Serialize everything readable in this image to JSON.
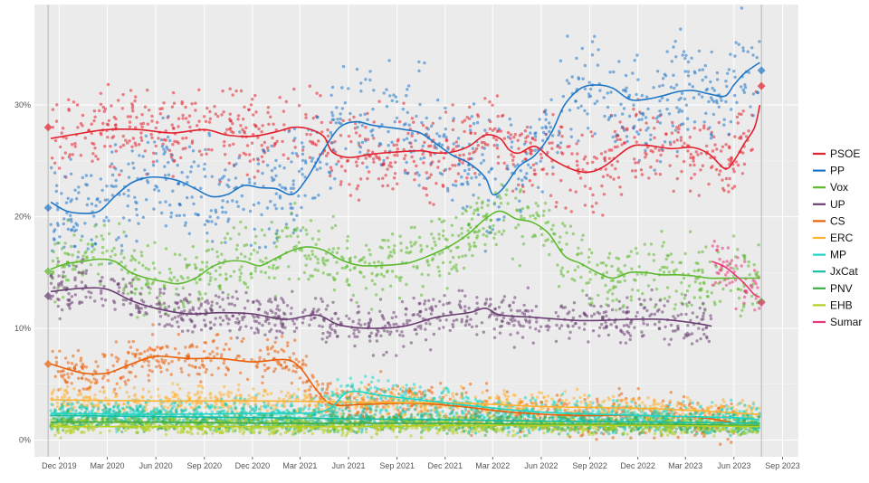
{
  "chart_data": {
    "type": "scatter",
    "title": "",
    "xlabel": "",
    "ylabel": "",
    "x_range": [
      "2019-10-15",
      "2023-10-01"
    ],
    "ylim": [
      -1.5,
      39
    ],
    "y_ticks": [
      {
        "value": 0,
        "label": "0%"
      },
      {
        "value": 10,
        "label": "10%"
      },
      {
        "value": 20,
        "label": "20%"
      },
      {
        "value": 30,
        "label": "30%"
      }
    ],
    "x_ticks": [
      {
        "date": "2019-12-01",
        "label": "Dec 2019"
      },
      {
        "date": "2020-03-01",
        "label": "Mar 2020"
      },
      {
        "date": "2020-06-01",
        "label": "Jun 2020"
      },
      {
        "date": "2020-09-01",
        "label": "Sep 2020"
      },
      {
        "date": "2020-12-01",
        "label": "Dec 2020"
      },
      {
        "date": "2021-03-01",
        "label": "Mar 2021"
      },
      {
        "date": "2021-06-01",
        "label": "Jun 2021"
      },
      {
        "date": "2021-09-01",
        "label": "Sep 2021"
      },
      {
        "date": "2021-12-01",
        "label": "Dec 2021"
      },
      {
        "date": "2022-03-01",
        "label": "Mar 2022"
      },
      {
        "date": "2022-06-01",
        "label": "Jun 2022"
      },
      {
        "date": "2022-09-01",
        "label": "Sep 2022"
      },
      {
        "date": "2022-12-01",
        "label": "Dec 2022"
      },
      {
        "date": "2023-03-01",
        "label": "Mar 2023"
      },
      {
        "date": "2023-06-01",
        "label": "Jun 2023"
      },
      {
        "date": "2023-09-01",
        "label": "Sep 2023"
      }
    ],
    "election_markers": [
      "2019-11-10",
      "2023-07-23"
    ],
    "grid": true,
    "legend_position": "right",
    "series": [
      {
        "name": "PSOE",
        "color": "#e3202d",
        "scatter": 1.8,
        "election_results": [
          {
            "date": "2019-11-10",
            "value": 28.0
          },
          {
            "date": "2023-07-23",
            "value": 31.7
          }
        ],
        "points": [
          [
            "2019-11-15",
            27.0
          ],
          [
            "2020-01-15",
            27.5
          ],
          [
            "2020-03-01",
            27.8
          ],
          [
            "2020-05-01",
            27.8
          ],
          [
            "2020-07-01",
            27.5
          ],
          [
            "2020-09-01",
            27.8
          ],
          [
            "2020-10-15",
            27.3
          ],
          [
            "2020-12-01",
            27.2
          ],
          [
            "2021-01-15",
            27.6
          ],
          [
            "2021-02-15",
            28.0
          ],
          [
            "2021-03-15",
            27.9
          ],
          [
            "2021-04-15",
            27.2
          ],
          [
            "2021-05-01",
            25.8
          ],
          [
            "2021-06-01",
            25.3
          ],
          [
            "2021-07-15",
            25.6
          ],
          [
            "2021-09-01",
            25.8
          ],
          [
            "2021-10-15",
            25.9
          ],
          [
            "2021-11-15",
            25.7
          ],
          [
            "2021-12-15",
            25.8
          ],
          [
            "2022-01-15",
            26.3
          ],
          [
            "2022-02-15",
            27.3
          ],
          [
            "2022-03-15",
            27.0
          ],
          [
            "2022-04-01",
            26.0
          ],
          [
            "2022-04-20",
            25.7
          ],
          [
            "2022-05-20",
            26.3
          ],
          [
            "2022-06-20",
            25.2
          ],
          [
            "2022-08-01",
            24.2
          ],
          [
            "2022-09-01",
            24.0
          ],
          [
            "2022-10-01",
            24.6
          ],
          [
            "2022-11-15",
            26.2
          ],
          [
            "2022-12-15",
            26.4
          ],
          [
            "2023-02-01",
            26.1
          ],
          [
            "2023-03-15",
            26.2
          ],
          [
            "2023-04-15",
            25.6
          ],
          [
            "2023-05-15",
            24.3
          ],
          [
            "2023-06-01",
            25.0
          ],
          [
            "2023-06-20",
            26.5
          ],
          [
            "2023-07-10",
            28.0
          ],
          [
            "2023-07-20",
            30.0
          ]
        ]
      },
      {
        "name": "PP",
        "color": "#1f77c8",
        "scatter": 2.5,
        "election_results": [
          {
            "date": "2019-11-10",
            "value": 20.8
          },
          {
            "date": "2023-07-23",
            "value": 33.1
          }
        ],
        "points": [
          [
            "2019-11-15",
            21.3
          ],
          [
            "2019-12-15",
            20.5
          ],
          [
            "2020-01-15",
            20.3
          ],
          [
            "2020-02-15",
            20.5
          ],
          [
            "2020-03-15",
            21.8
          ],
          [
            "2020-04-15",
            23.0
          ],
          [
            "2020-05-15",
            23.5
          ],
          [
            "2020-06-15",
            23.5
          ],
          [
            "2020-07-15",
            23.2
          ],
          [
            "2020-08-15",
            22.5
          ],
          [
            "2020-09-15",
            21.8
          ],
          [
            "2020-10-15",
            22.0
          ],
          [
            "2020-11-15",
            22.8
          ],
          [
            "2020-12-15",
            22.6
          ],
          [
            "2021-01-15",
            22.5
          ],
          [
            "2021-02-15",
            22.0
          ],
          [
            "2021-03-15",
            23.5
          ],
          [
            "2021-04-15",
            26.0
          ],
          [
            "2021-05-15",
            28.0
          ],
          [
            "2021-06-15",
            28.5
          ],
          [
            "2021-07-15",
            28.2
          ],
          [
            "2021-08-15",
            28.0
          ],
          [
            "2021-09-15",
            27.8
          ],
          [
            "2021-10-15",
            27.5
          ],
          [
            "2021-11-15",
            26.5
          ],
          [
            "2021-12-15",
            25.5
          ],
          [
            "2022-01-15",
            24.8
          ],
          [
            "2022-02-15",
            23.5
          ],
          [
            "2022-03-01",
            22.0
          ],
          [
            "2022-03-20",
            22.5
          ],
          [
            "2022-04-20",
            24.5
          ],
          [
            "2022-05-20",
            25.5
          ],
          [
            "2022-06-20",
            27.5
          ],
          [
            "2022-07-15",
            30.0
          ],
          [
            "2022-08-15",
            31.5
          ],
          [
            "2022-09-15",
            31.8
          ],
          [
            "2022-10-15",
            31.5
          ],
          [
            "2022-11-15",
            30.5
          ],
          [
            "2022-12-15",
            30.5
          ],
          [
            "2023-01-15",
            30.8
          ],
          [
            "2023-02-15",
            31.2
          ],
          [
            "2023-03-15",
            31.3
          ],
          [
            "2023-04-15",
            31.0
          ],
          [
            "2023-05-15",
            30.8
          ],
          [
            "2023-06-01",
            31.8
          ],
          [
            "2023-06-20",
            32.8
          ],
          [
            "2023-07-10",
            33.5
          ],
          [
            "2023-07-20",
            33.8
          ]
        ]
      },
      {
        "name": "Vox",
        "color": "#5dba2e",
        "scatter": 1.6,
        "election_results": [
          {
            "date": "2019-11-10",
            "value": 15.1
          },
          {
            "date": "2023-07-23",
            "value": 12.4
          }
        ],
        "points": [
          [
            "2019-11-15",
            15.3
          ],
          [
            "2019-12-15",
            15.8
          ],
          [
            "2020-01-15",
            16.0
          ],
          [
            "2020-02-15",
            16.2
          ],
          [
            "2020-03-15",
            16.0
          ],
          [
            "2020-04-15",
            15.0
          ],
          [
            "2020-05-15",
            14.5
          ],
          [
            "2020-06-15",
            14.2
          ],
          [
            "2020-07-15",
            14.0
          ],
          [
            "2020-08-15",
            14.5
          ],
          [
            "2020-09-15",
            15.5
          ],
          [
            "2020-10-15",
            16.0
          ],
          [
            "2020-11-15",
            16.0
          ],
          [
            "2020-12-15",
            15.6
          ],
          [
            "2021-01-15",
            16.3
          ],
          [
            "2021-02-15",
            17.0
          ],
          [
            "2021-03-15",
            17.3
          ],
          [
            "2021-04-15",
            17.0
          ],
          [
            "2021-05-15",
            16.2
          ],
          [
            "2021-06-15",
            15.7
          ],
          [
            "2021-07-15",
            15.6
          ],
          [
            "2021-09-15",
            15.8
          ],
          [
            "2021-10-15",
            16.2
          ],
          [
            "2021-11-15",
            16.8
          ],
          [
            "2021-12-15",
            17.5
          ],
          [
            "2022-01-15",
            18.5
          ],
          [
            "2022-02-15",
            19.8
          ],
          [
            "2022-03-15",
            20.5
          ],
          [
            "2022-04-15",
            19.8
          ],
          [
            "2022-05-15",
            19.5
          ],
          [
            "2022-06-15",
            18.5
          ],
          [
            "2022-07-15",
            16.5
          ],
          [
            "2022-08-15",
            15.8
          ],
          [
            "2022-09-15",
            15.0
          ],
          [
            "2022-10-15",
            14.5
          ],
          [
            "2022-11-15",
            15.0
          ],
          [
            "2022-12-15",
            15.0
          ],
          [
            "2023-01-15",
            14.8
          ],
          [
            "2023-02-15",
            14.8
          ],
          [
            "2023-03-15",
            14.7
          ],
          [
            "2023-04-15",
            14.5
          ],
          [
            "2023-05-15",
            14.5
          ],
          [
            "2023-06-15",
            14.5
          ],
          [
            "2023-07-20",
            14.5
          ]
        ]
      },
      {
        "name": "UP",
        "color": "#6b3f73",
        "scatter": 1.0,
        "election_results": [
          {
            "date": "2019-11-10",
            "value": 12.9
          }
        ],
        "points": [
          [
            "2019-11-15",
            13.3
          ],
          [
            "2020-01-15",
            13.6
          ],
          [
            "2020-03-01",
            13.5
          ],
          [
            "2020-04-15",
            12.5
          ],
          [
            "2020-06-01",
            11.8
          ],
          [
            "2020-08-01",
            11.3
          ],
          [
            "2020-10-01",
            11.4
          ],
          [
            "2020-12-01",
            11.3
          ],
          [
            "2021-02-01",
            10.8
          ],
          [
            "2021-04-01",
            11.2
          ],
          [
            "2021-05-15",
            10.3
          ],
          [
            "2021-07-15",
            10.0
          ],
          [
            "2021-09-15",
            10.2
          ],
          [
            "2021-11-15",
            11.0
          ],
          [
            "2022-01-15",
            11.4
          ],
          [
            "2022-02-15",
            11.8
          ],
          [
            "2022-03-15",
            11.2
          ],
          [
            "2022-05-15",
            11.0
          ],
          [
            "2022-08-15",
            10.7
          ],
          [
            "2022-11-15",
            10.8
          ],
          [
            "2023-01-15",
            10.8
          ],
          [
            "2023-03-15",
            10.5
          ],
          [
            "2023-04-20",
            10.2
          ]
        ]
      },
      {
        "name": "CS",
        "color": "#eb6109",
        "scatter": 1.0,
        "election_results": [
          {
            "date": "2019-11-10",
            "value": 6.8
          }
        ],
        "points": [
          [
            "2019-11-15",
            6.8
          ],
          [
            "2020-01-15",
            6.0
          ],
          [
            "2020-03-01",
            6.0
          ],
          [
            "2020-04-15",
            6.8
          ],
          [
            "2020-06-01",
            7.5
          ],
          [
            "2020-08-01",
            7.3
          ],
          [
            "2020-10-01",
            7.3
          ],
          [
            "2020-12-01",
            7.0
          ],
          [
            "2021-02-01",
            7.2
          ],
          [
            "2021-03-01",
            6.5
          ],
          [
            "2021-04-01",
            4.5
          ],
          [
            "2021-05-01",
            3.2
          ],
          [
            "2021-07-01",
            3.2
          ],
          [
            "2021-10-01",
            3.3
          ],
          [
            "2022-01-01",
            3.0
          ],
          [
            "2022-04-01",
            2.5
          ],
          [
            "2022-08-01",
            2.2
          ],
          [
            "2022-12-01",
            2.2
          ],
          [
            "2023-04-01",
            2.0
          ],
          [
            "2023-06-01",
            1.5
          ]
        ]
      },
      {
        "name": "ERC",
        "color": "#ffb232",
        "scatter": 0.6,
        "election_results": [],
        "points": [
          [
            "2019-11-15",
            3.6
          ],
          [
            "2020-06-01",
            3.5
          ],
          [
            "2021-01-01",
            3.5
          ],
          [
            "2021-06-01",
            3.4
          ],
          [
            "2022-01-01",
            3.3
          ],
          [
            "2022-06-01",
            3.0
          ],
          [
            "2023-01-01",
            2.8
          ],
          [
            "2023-07-20",
            2.3
          ]
        ]
      },
      {
        "name": "MP",
        "color": "#1fd6c6",
        "scatter": 0.7,
        "election_results": [],
        "points": [
          [
            "2019-11-15",
            2.4
          ],
          [
            "2020-06-01",
            2.3
          ],
          [
            "2021-01-01",
            2.4
          ],
          [
            "2021-04-15",
            2.6
          ],
          [
            "2021-06-01",
            4.3
          ],
          [
            "2021-08-01",
            4.0
          ],
          [
            "2021-11-01",
            3.5
          ],
          [
            "2022-02-01",
            3.0
          ],
          [
            "2022-06-01",
            2.5
          ],
          [
            "2022-12-01",
            2.2
          ],
          [
            "2023-06-01",
            2.0
          ],
          [
            "2023-07-20",
            1.8
          ]
        ]
      },
      {
        "name": "JxCat",
        "color": "#14c0a6",
        "scatter": 0.5,
        "election_results": [],
        "points": [
          [
            "2019-11-15",
            2.2
          ],
          [
            "2020-06-01",
            2.1
          ],
          [
            "2021-01-01",
            2.0
          ],
          [
            "2021-06-01",
            1.9
          ],
          [
            "2022-01-01",
            1.8
          ],
          [
            "2022-06-01",
            1.7
          ],
          [
            "2023-01-01",
            1.6
          ],
          [
            "2023-07-20",
            1.5
          ]
        ]
      },
      {
        "name": "PNV",
        "color": "#3cae45",
        "scatter": 0.4,
        "election_results": [],
        "points": [
          [
            "2019-11-15",
            1.6
          ],
          [
            "2020-06-01",
            1.6
          ],
          [
            "2021-01-01",
            1.5
          ],
          [
            "2021-06-01",
            1.5
          ],
          [
            "2022-01-01",
            1.5
          ],
          [
            "2022-06-01",
            1.4
          ],
          [
            "2023-01-01",
            1.4
          ],
          [
            "2023-07-20",
            1.3
          ]
        ]
      },
      {
        "name": "EHB",
        "color": "#b3cf1f",
        "scatter": 0.4,
        "election_results": [],
        "points": [
          [
            "2019-11-15",
            1.2
          ],
          [
            "2020-06-01",
            1.2
          ],
          [
            "2021-01-01",
            1.2
          ],
          [
            "2021-06-01",
            1.2
          ],
          [
            "2022-01-01",
            1.3
          ],
          [
            "2022-06-01",
            1.3
          ],
          [
            "2023-01-01",
            1.3
          ],
          [
            "2023-07-20",
            1.2
          ]
        ]
      },
      {
        "name": "Sumar",
        "color": "#e6397a",
        "scatter": 1.2,
        "election_results": [
          {
            "date": "2023-07-23",
            "value": 12.3
          }
        ],
        "points": [
          [
            "2023-04-20",
            16.0
          ],
          [
            "2023-05-15",
            15.5
          ],
          [
            "2023-06-10",
            14.5
          ],
          [
            "2023-06-25",
            13.8
          ],
          [
            "2023-07-10",
            13.0
          ],
          [
            "2023-07-20",
            12.8
          ]
        ]
      }
    ]
  }
}
